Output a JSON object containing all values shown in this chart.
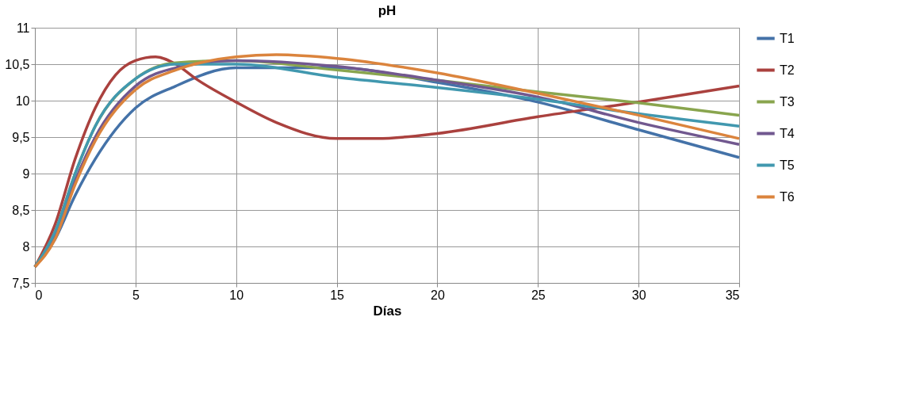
{
  "chart_data": {
    "type": "line",
    "title": "pH",
    "xlabel": "Días",
    "xlim": [
      0,
      35
    ],
    "xticks": [
      0,
      5,
      10,
      15,
      20,
      25,
      30,
      35
    ],
    "ylim": [
      7.5,
      11
    ],
    "yticks": [
      {
        "value": 7.5,
        "label": "7,5"
      },
      8,
      {
        "value": 8.5,
        "label": "8,5"
      },
      9,
      {
        "value": 9.5,
        "label": "9,5"
      },
      10,
      {
        "value": 10.5,
        "label": "10,5"
      },
      11
    ],
    "grid": true,
    "legend": "right",
    "marker": "none",
    "line_style": "solid",
    "series": [
      {
        "name": "T1",
        "color": "#4472a8",
        "x": [
          0,
          1,
          2,
          3,
          5,
          7,
          10,
          15,
          20,
          25,
          30,
          35
        ],
        "values": [
          7.72,
          8.1,
          8.7,
          9.2,
          9.9,
          10.2,
          10.45,
          10.45,
          10.25,
          9.98,
          9.6,
          9.22
        ]
      },
      {
        "name": "T2",
        "color": "#aa413e",
        "x": [
          0,
          1,
          2,
          3,
          4,
          5,
          6,
          7,
          8,
          10,
          12,
          15,
          17,
          20,
          25,
          30,
          35
        ],
        "values": [
          7.72,
          8.3,
          9.2,
          9.9,
          10.35,
          10.55,
          10.6,
          10.5,
          10.3,
          9.98,
          9.7,
          9.48,
          9.48,
          9.55,
          9.78,
          9.98,
          10.2
        ]
      },
      {
        "name": "T3",
        "color": "#89a54e",
        "x": [
          0,
          1,
          2,
          3,
          5,
          7,
          10,
          15,
          20,
          25,
          30,
          35
        ],
        "values": [
          7.72,
          8.2,
          9.0,
          9.65,
          10.3,
          10.52,
          10.55,
          10.42,
          10.28,
          10.12,
          9.97,
          9.8
        ]
      },
      {
        "name": "T4",
        "color": "#71588f",
        "x": [
          0,
          1,
          2,
          3,
          5,
          7,
          10,
          15,
          20,
          25,
          30,
          35
        ],
        "values": [
          7.72,
          8.15,
          8.9,
          9.5,
          10.2,
          10.45,
          10.55,
          10.47,
          10.28,
          10.05,
          9.7,
          9.4
        ]
      },
      {
        "name": "T5",
        "color": "#4198af",
        "x": [
          0,
          1,
          2,
          3,
          5,
          7,
          10,
          15,
          20,
          25,
          30,
          35
        ],
        "values": [
          7.72,
          8.2,
          9.0,
          9.65,
          10.3,
          10.5,
          10.5,
          10.32,
          10.18,
          10.02,
          9.82,
          9.65
        ]
      },
      {
        "name": "T6",
        "color": "#db843d",
        "x": [
          0,
          1,
          2,
          3,
          5,
          7,
          10,
          12,
          15,
          20,
          25,
          30,
          35
        ],
        "values": [
          7.72,
          8.1,
          8.85,
          9.45,
          10.15,
          10.42,
          10.6,
          10.63,
          10.58,
          10.38,
          10.1,
          9.8,
          9.48
        ]
      }
    ]
  }
}
